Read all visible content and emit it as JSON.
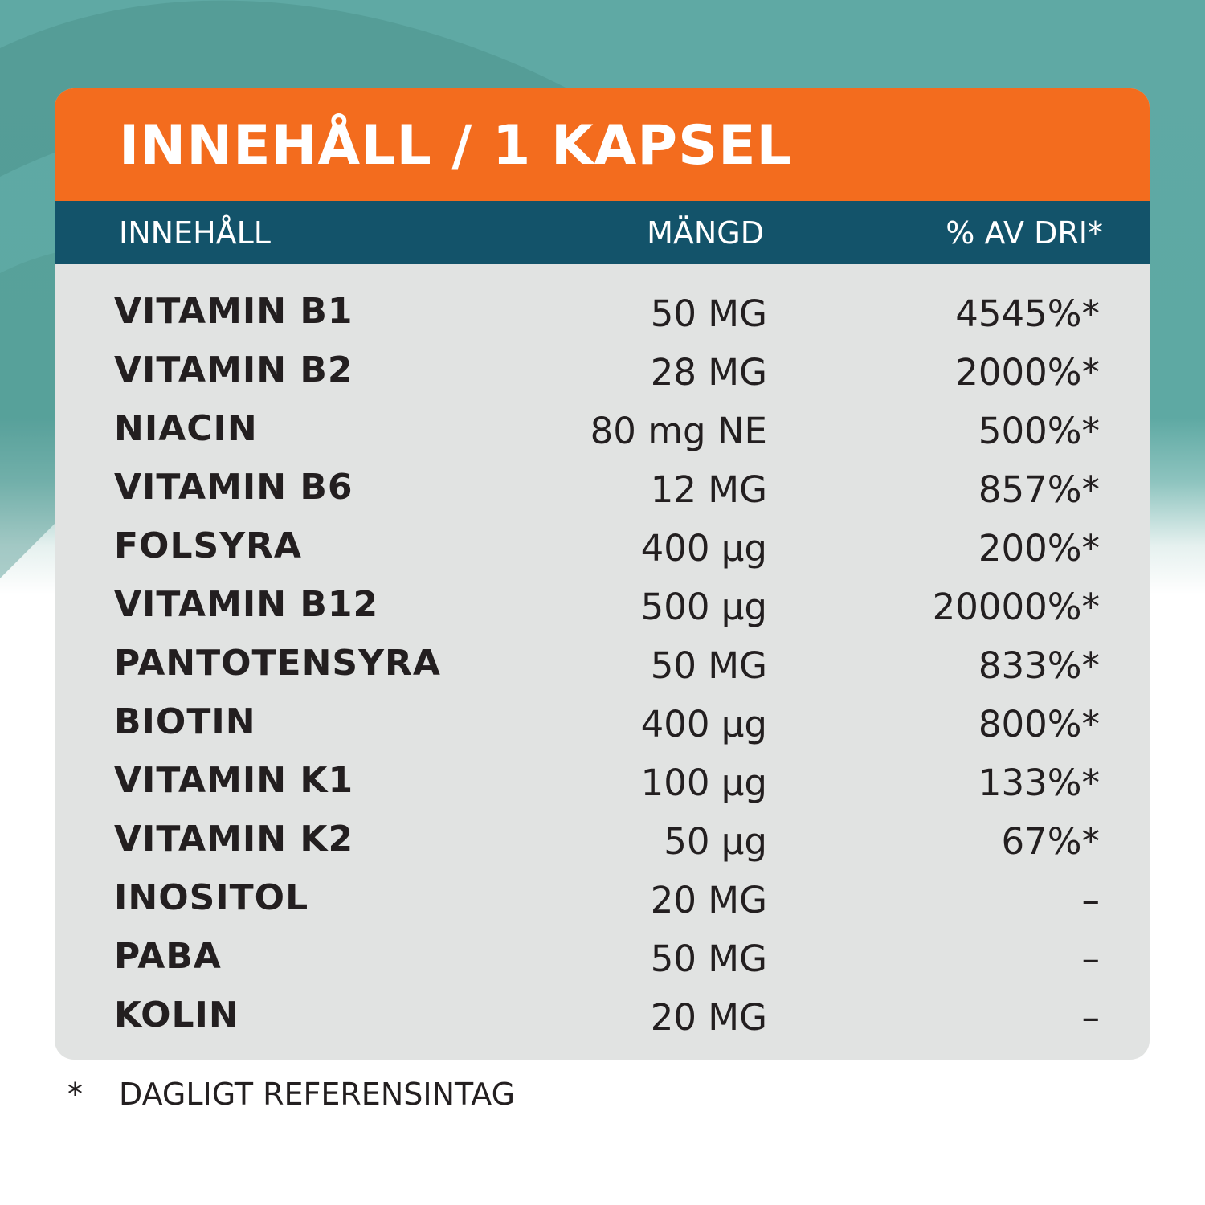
{
  "title": "INNEHÅLL / 1 KAPSEL",
  "headers": {
    "name": "INNEHÅLL",
    "amount": "MÄNGD",
    "dri": "% AV DRI*"
  },
  "rows": [
    {
      "name": "VITAMIN B1",
      "amount": "50 MG",
      "dri": "4545%*"
    },
    {
      "name": "VITAMIN B2",
      "amount": "28 MG",
      "dri": "2000%*"
    },
    {
      "name": "NIACIN",
      "amount": "80 mg NE",
      "dri": "500%*"
    },
    {
      "name": "VITAMIN B6",
      "amount": "12 MG",
      "dri": "857%*"
    },
    {
      "name": "FOLSYRA",
      "amount": "400 µg",
      "dri": "200%*"
    },
    {
      "name": "VITAMIN B12",
      "amount": "500 µg",
      "dri": "20000%*"
    },
    {
      "name": "PANTOTENSYRA",
      "amount": "50 MG",
      "dri": "833%*"
    },
    {
      "name": "BIOTIN",
      "amount": "400 µg",
      "dri": "800%*"
    },
    {
      "name": "VITAMIN K1",
      "amount": "100 µg",
      "dri": "133%*"
    },
    {
      "name": "VITAMIN K2",
      "amount": "50 µg",
      "dri": "67%*"
    },
    {
      "name": "INOSITOL",
      "amount": "20 MG",
      "dri": "–"
    },
    {
      "name": "PABA",
      "amount": "50 MG",
      "dri": "–"
    },
    {
      "name": "KOLIN",
      "amount": "20 MG",
      "dri": "–"
    }
  ],
  "footnote": {
    "mark": "*",
    "text": "DAGLIGT REFERENSINTAG"
  },
  "colors": {
    "title_bar": "#f36c1e",
    "header_bar": "#13536a",
    "card": "#e1e3e2",
    "background": "#5fa9a4",
    "text": "#231f20"
  }
}
